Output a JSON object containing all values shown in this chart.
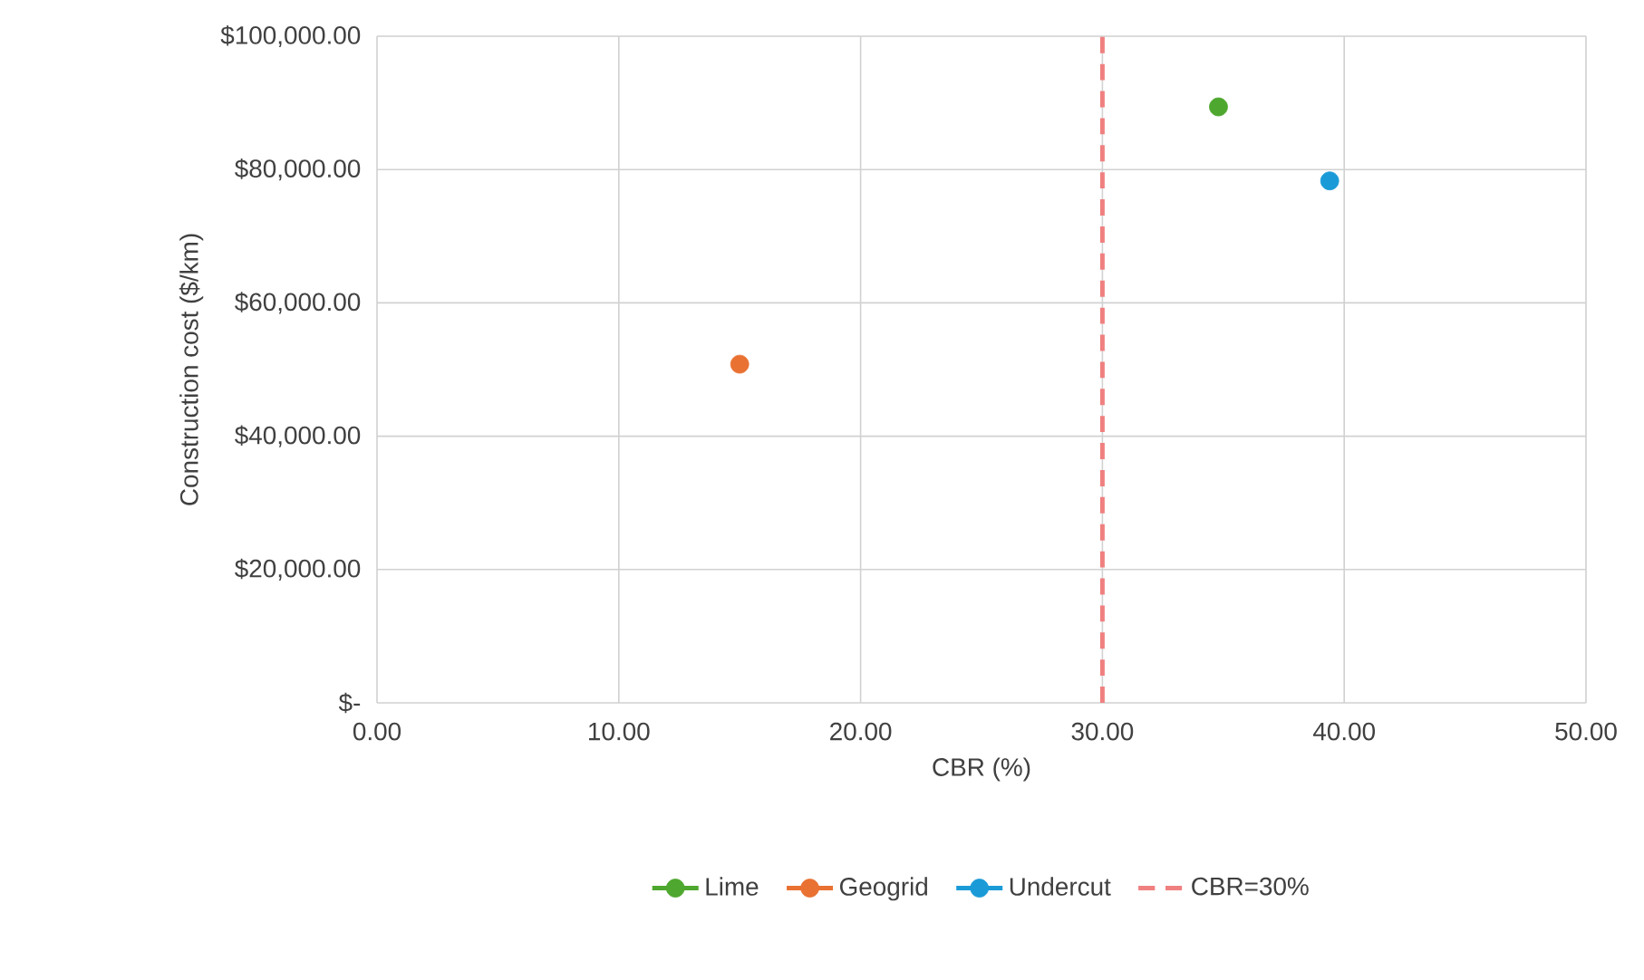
{
  "chart_data": {
    "type": "scatter",
    "xlabel": "CBR (%)",
    "ylabel": "Construction cost ($/km)",
    "series": [
      {
        "name": "Lime",
        "color": "#4ea72e",
        "x": [
          34.8
        ],
        "values": [
          89400
        ]
      },
      {
        "name": "Geogrid",
        "color": "#e97132",
        "x": [
          15.0
        ],
        "values": [
          50800
        ]
      },
      {
        "name": "Undercut",
        "color": "#1a9bd7",
        "x": [
          39.4
        ],
        "values": [
          78300
        ]
      }
    ],
    "xlim": [
      0,
      50
    ],
    "ylim": [
      0,
      100000
    ],
    "xticks": [
      {
        "value": 0,
        "label": "0.00"
      },
      {
        "value": 10,
        "label": "10.00"
      },
      {
        "value": 20,
        "label": "20.00"
      },
      {
        "value": 30,
        "label": "30.00"
      },
      {
        "value": 40,
        "label": "40.00"
      },
      {
        "value": 50,
        "label": "50.00"
      }
    ],
    "yticks": [
      {
        "value": 0,
        "label": "$-"
      },
      {
        "value": 20000,
        "label": "$20,000.00"
      },
      {
        "value": 40000,
        "label": "$40,000.00"
      },
      {
        "value": 60000,
        "label": "$60,000.00"
      },
      {
        "value": 80000,
        "label": "$80,000.00"
      },
      {
        "value": 100000,
        "label": "$100,000.00"
      }
    ],
    "ref_lines": [
      {
        "axis": "x",
        "value": 30,
        "label": "CBR=30%",
        "color": "#f08080",
        "line_style": "dashed"
      }
    ],
    "grid": true,
    "legend": "bottom"
  }
}
